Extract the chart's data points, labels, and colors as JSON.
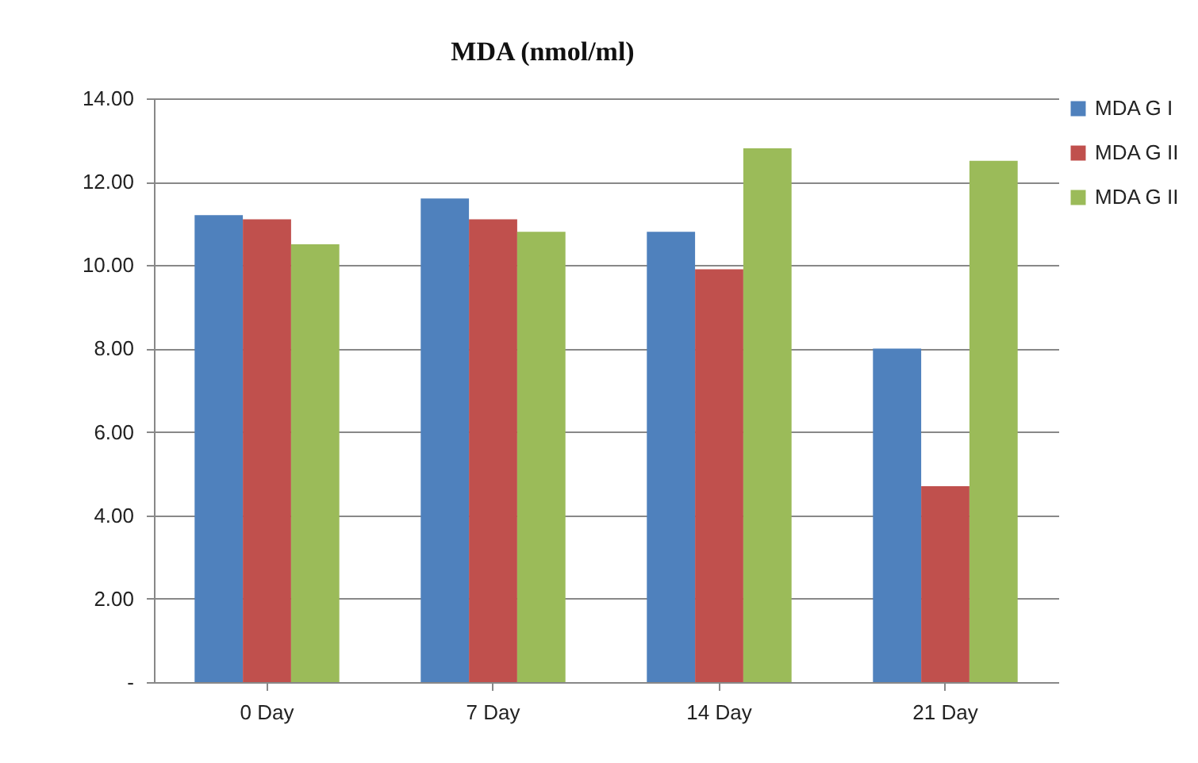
{
  "chart_data": {
    "type": "bar",
    "title": "MDA (nmol/ml)",
    "categories": [
      "0 Day",
      "7 Day",
      "14 Day",
      "21 Day"
    ],
    "series": [
      {
        "name": "MDA G I",
        "color": "#4f81bd",
        "values": [
          11.2,
          11.6,
          10.8,
          8.0
        ]
      },
      {
        "name": "MDA G II",
        "color": "#c0504d",
        "values": [
          11.1,
          11.1,
          9.9,
          4.7
        ]
      },
      {
        "name": "MDA G II",
        "color": "#9bbb59",
        "values": [
          10.5,
          10.8,
          12.8,
          12.5
        ]
      }
    ],
    "ylim": [
      0,
      14
    ],
    "yticks": [
      {
        "value": 0,
        "label": "-"
      },
      {
        "value": 2,
        "label": "2.00"
      },
      {
        "value": 4,
        "label": "4.00"
      },
      {
        "value": 6,
        "label": "6.00"
      },
      {
        "value": 8,
        "label": "8.00"
      },
      {
        "value": 10,
        "label": "10.00"
      },
      {
        "value": 12,
        "label": "12.00"
      },
      {
        "value": 14,
        "label": "14.00"
      }
    ],
    "grid": "y",
    "legend": "right"
  }
}
